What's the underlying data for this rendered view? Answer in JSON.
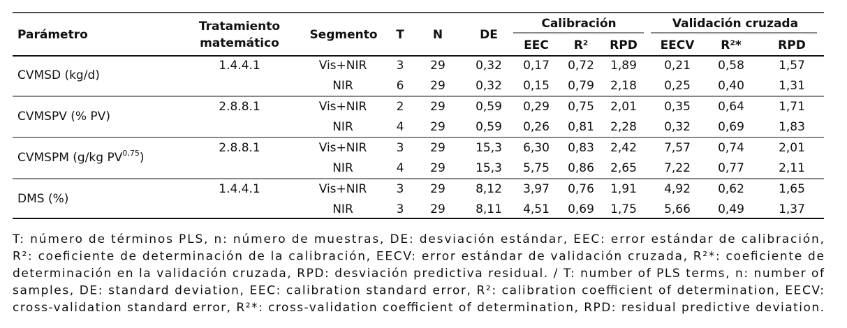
{
  "table": {
    "header": {
      "parameter": "Parámetro",
      "treatment": [
        "Tratamiento",
        "matemático"
      ],
      "segment": "Segmento",
      "t": "T",
      "n": "N",
      "de": "DE",
      "calibration": "Calibración",
      "validation": "Validación cruzada",
      "sub": [
        "EEC",
        "R²",
        "RPD",
        "EECV",
        "R²*",
        "RPD"
      ]
    },
    "rows": [
      {
        "parameter": [
          "CVMSD (kg/d)"
        ],
        "treatment": "1.4.4.1",
        "lines": [
          [
            "Vis+NIR",
            "3",
            "29",
            "0,32",
            "0,17",
            "0,72",
            "1,89",
            "0,21",
            "0,58",
            "1,57"
          ],
          [
            "NIR",
            "6",
            "29",
            "0,32",
            "0,15",
            "0,79",
            "2,18",
            "0,25",
            "0,40",
            "1,31"
          ]
        ]
      },
      {
        "parameter": [
          "CVMSPV (% PV)"
        ],
        "treatment": "2.8.8.1",
        "lines": [
          [
            "Vis+NIR",
            "2",
            "29",
            "0,59",
            "0,29",
            "0,75",
            "2,01",
            "0,35",
            "0,64",
            "1,71"
          ],
          [
            "NIR",
            "4",
            "29",
            "0,59",
            "0,26",
            "0,81",
            "2,28",
            "0,32",
            "0,69",
            "1,83"
          ]
        ]
      },
      {
        "parameter": [
          "CVMSPM (g/kg PV",
          "0,75",
          ")"
        ],
        "treatment": "2.8.8.1",
        "lines": [
          [
            "Vis+NIR",
            "3",
            "29",
            "15,3",
            "6,30",
            "0,83",
            "2,42",
            "7,57",
            "0,74",
            "2,01"
          ],
          [
            "NIR",
            "4",
            "29",
            "15,3",
            "5,75",
            "0,86",
            "2,65",
            "7,22",
            "0,77",
            "2,11"
          ]
        ]
      },
      {
        "parameter": [
          "DMS (%)"
        ],
        "treatment": "1.4.4.1",
        "lines": [
          [
            "Vis+NIR",
            "3",
            "29",
            "8,12",
            "3,97",
            "0,76",
            "1,91",
            "4,92",
            "0,62",
            "1,65"
          ],
          [
            "NIR",
            "3",
            "29",
            "8,11",
            "4,51",
            "0,69",
            "1,75",
            "5,66",
            "0,49",
            "1,37"
          ]
        ]
      }
    ]
  },
  "footnote": [
    "T: número de términos PLS, n: número de muestras, DE: desviación estándar, EEC: error estándar de calibración,",
    "R²: coeficiente de determinación de la calibración, EECV: error estándar de validación cruzada, R²*: coeficiente de",
    "determinación en la validación cruzada, RPD: desviación predictiva residual. / T: number of PLS terms, n: number of",
    "samples, DE: standard deviation, EEC: calibration standard error, R²: calibration coefficient of determination, EECV:",
    "cross-validation standard error, R²*: cross-validation coefficient of determination, RPD: residual predictive deviation."
  ]
}
